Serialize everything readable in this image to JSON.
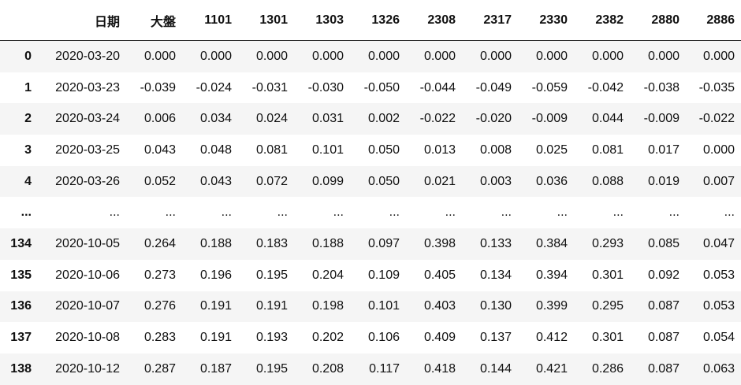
{
  "table": {
    "columns": [
      "日期",
      "大盤",
      "1101",
      "1301",
      "1303",
      "1326",
      "2308",
      "2317",
      "2330",
      "2382",
      "2880",
      "2886"
    ],
    "rows": [
      [
        "0",
        "2020-03-20",
        "0.000",
        "0.000",
        "0.000",
        "0.000",
        "0.000",
        "0.000",
        "0.000",
        "0.000",
        "0.000",
        "0.000",
        "0.000"
      ],
      [
        "1",
        "2020-03-23",
        "-0.039",
        "-0.024",
        "-0.031",
        "-0.030",
        "-0.050",
        "-0.044",
        "-0.049",
        "-0.059",
        "-0.042",
        "-0.038",
        "-0.035"
      ],
      [
        "2",
        "2020-03-24",
        "0.006",
        "0.034",
        "0.024",
        "0.031",
        "0.002",
        "-0.022",
        "-0.020",
        "-0.009",
        "0.044",
        "-0.009",
        "-0.022"
      ],
      [
        "3",
        "2020-03-25",
        "0.043",
        "0.048",
        "0.081",
        "0.101",
        "0.050",
        "0.013",
        "0.008",
        "0.025",
        "0.081",
        "0.017",
        "0.000"
      ],
      [
        "4",
        "2020-03-26",
        "0.052",
        "0.043",
        "0.072",
        "0.099",
        "0.050",
        "0.021",
        "0.003",
        "0.036",
        "0.088",
        "0.019",
        "0.007"
      ],
      [
        "...",
        "...",
        "...",
        "...",
        "...",
        "...",
        "...",
        "...",
        "...",
        "...",
        "...",
        "...",
        "..."
      ],
      [
        "134",
        "2020-10-05",
        "0.264",
        "0.188",
        "0.183",
        "0.188",
        "0.097",
        "0.398",
        "0.133",
        "0.384",
        "0.293",
        "0.085",
        "0.047"
      ],
      [
        "135",
        "2020-10-06",
        "0.273",
        "0.196",
        "0.195",
        "0.204",
        "0.109",
        "0.405",
        "0.134",
        "0.394",
        "0.301",
        "0.092",
        "0.053"
      ],
      [
        "136",
        "2020-10-07",
        "0.276",
        "0.191",
        "0.191",
        "0.198",
        "0.101",
        "0.403",
        "0.130",
        "0.399",
        "0.295",
        "0.087",
        "0.053"
      ],
      [
        "137",
        "2020-10-08",
        "0.283",
        "0.191",
        "0.193",
        "0.202",
        "0.106",
        "0.409",
        "0.137",
        "0.412",
        "0.301",
        "0.087",
        "0.054"
      ],
      [
        "138",
        "2020-10-12",
        "0.287",
        "0.187",
        "0.195",
        "0.208",
        "0.117",
        "0.418",
        "0.144",
        "0.421",
        "0.286",
        "0.087",
        "0.063"
      ]
    ]
  }
}
